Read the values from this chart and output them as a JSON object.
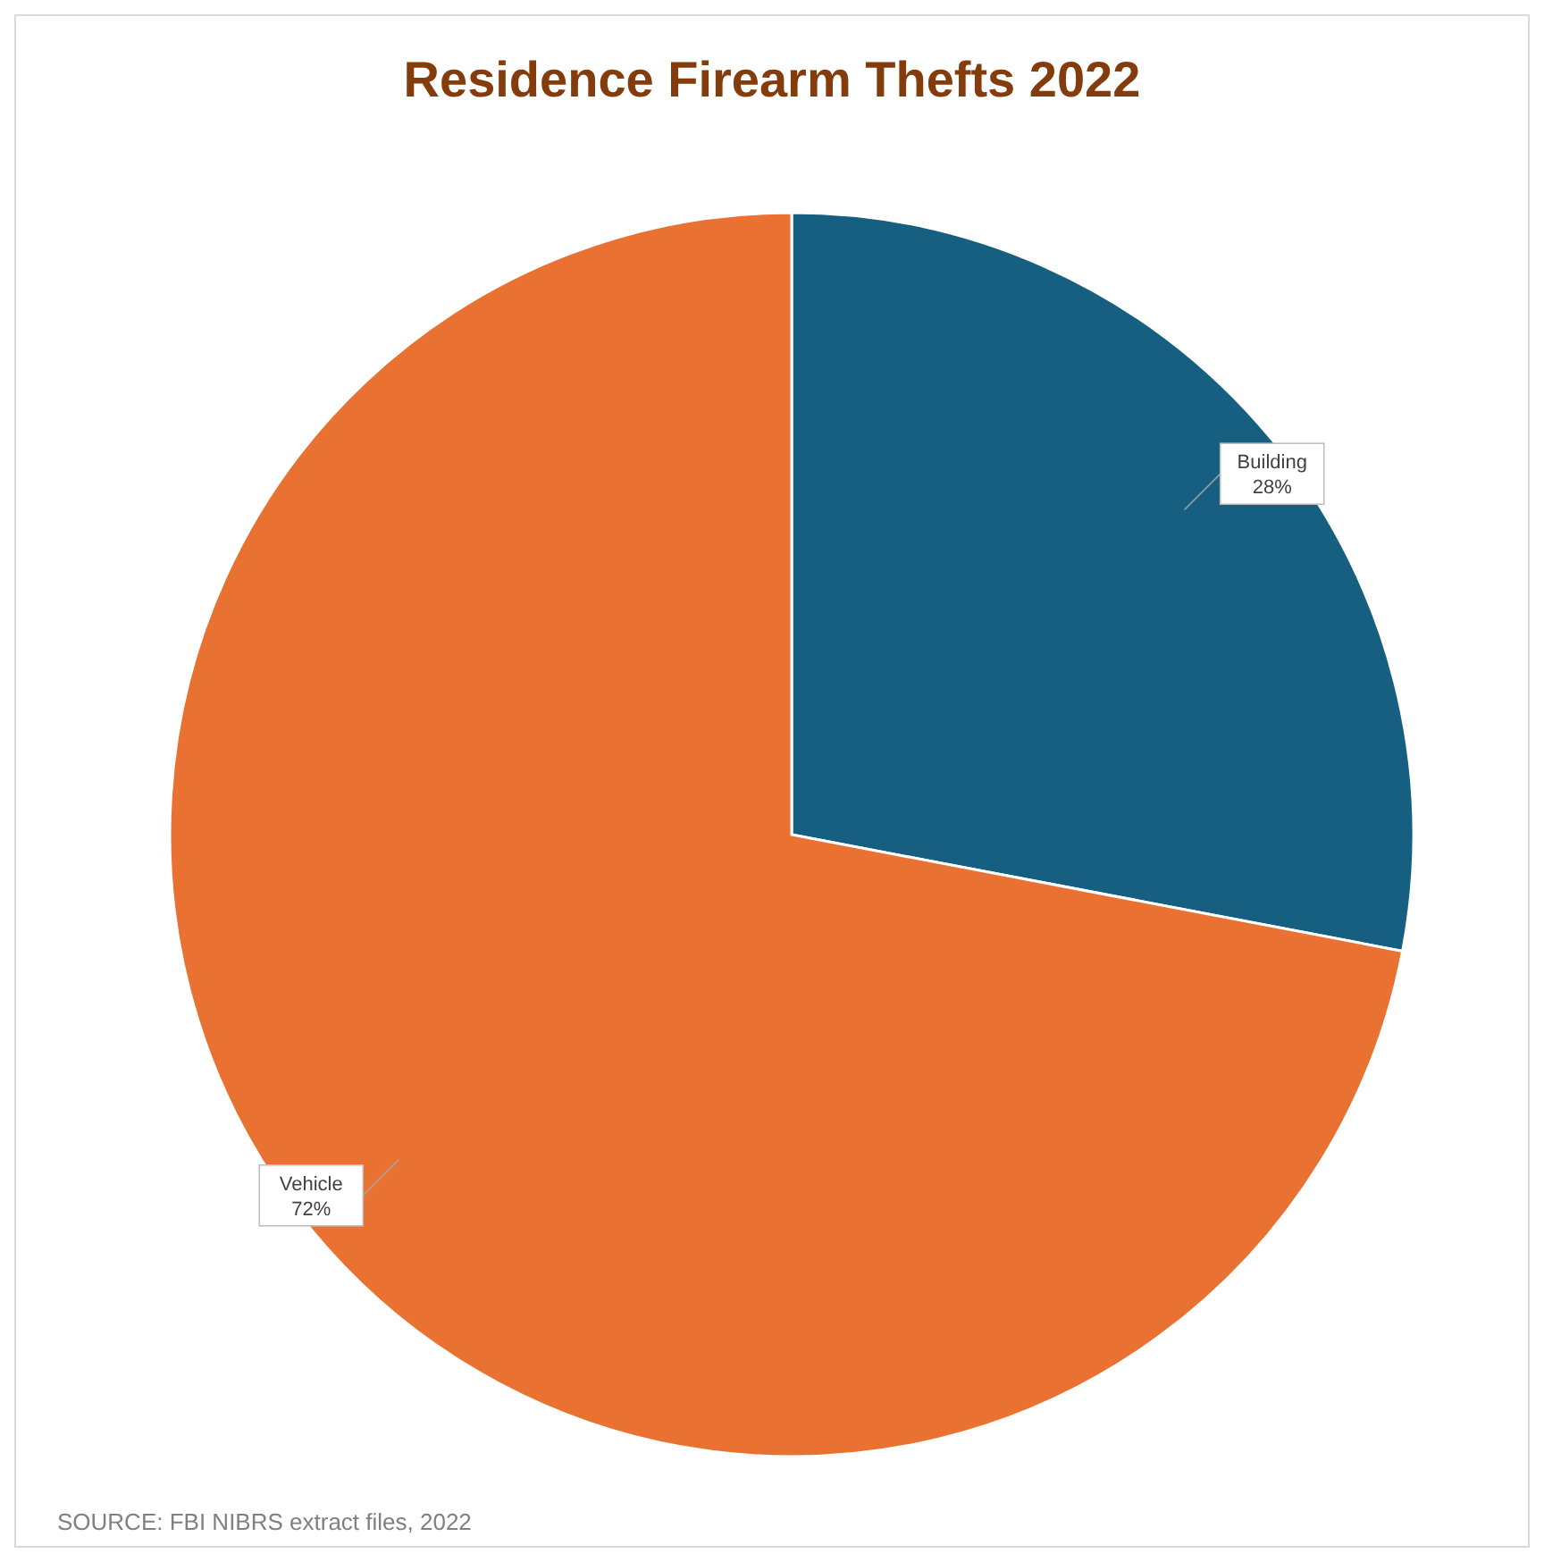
{
  "chart_data": {
    "type": "pie",
    "title": "Residence Firearm Thefts 2022",
    "categories": [
      "Building",
      "Vehicle"
    ],
    "values": [
      28,
      72
    ],
    "value_labels": [
      "28%",
      "72%"
    ],
    "colors": [
      "#175f80",
      "#e97132"
    ],
    "annotations": [
      "SOURCE: FBI NIBRS extract files, 2022"
    ]
  }
}
